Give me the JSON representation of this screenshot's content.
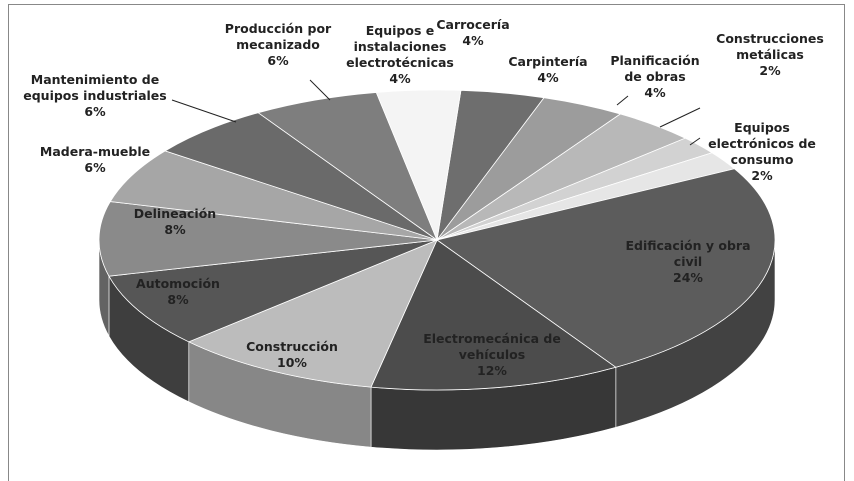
{
  "chart_data": {
    "type": "pie",
    "categories": [
      "Carrocería",
      "Carpintería",
      "Planificación de obras",
      "Construcciones metálicas",
      "Equipos electrónicos de consumo",
      "Edificación y obra civil",
      "Electromecánica de vehículos",
      "Construcción",
      "Automoción",
      "Delineación",
      "Madera-mueble",
      "Mantenimiento de equipos industriales",
      "Producción por mecanizado",
      "Equipos e instalaciones electrotécnicas"
    ],
    "values": [
      4,
      4,
      4,
      2,
      2,
      24,
      12,
      10,
      8,
      8,
      6,
      6,
      6,
      4
    ],
    "value_labels": [
      "4%",
      "4%",
      "4%",
      "2%",
      "2%",
      "24%",
      "12%",
      "10%",
      "8%",
      "8%",
      "6%",
      "6%",
      "6%",
      "4%"
    ],
    "colors": [
      "#6e6e6e",
      "#9c9c9c",
      "#b8b8b8",
      "#d2d2d2",
      "#e6e6e6",
      "#5c5c5c",
      "#4c4c4c",
      "#bcbcbc",
      "#565656",
      "#8a8a8a",
      "#a6a6a6",
      "#6a6a6a",
      "#7e7e7e",
      "#f4f4f4"
    ]
  }
}
